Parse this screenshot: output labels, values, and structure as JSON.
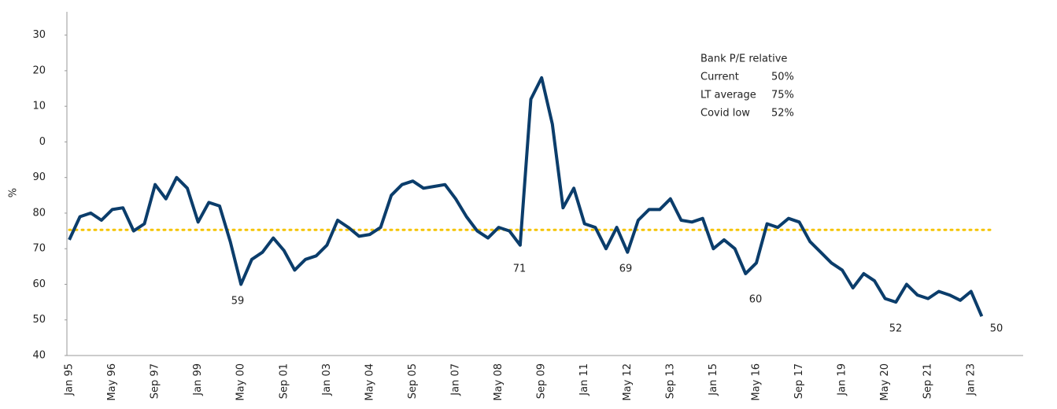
{
  "chart_data": {
    "type": "line",
    "y_label": "%",
    "categories": [
      "Jan 95",
      null,
      null,
      null,
      "May 96",
      null,
      null,
      null,
      "Sep 97",
      null,
      null,
      null,
      "Jan 99",
      null,
      null,
      null,
      "May 00",
      null,
      null,
      null,
      "Sep 01",
      null,
      null,
      null,
      "Jan 03",
      null,
      null,
      null,
      "May 04",
      null,
      null,
      null,
      "Sep 05",
      null,
      null,
      null,
      "Jan 07",
      null,
      null,
      null,
      "May 08",
      null,
      null,
      null,
      "Sep 09",
      null,
      null,
      null,
      "Jan 11",
      null,
      null,
      null,
      "May 12",
      null,
      null,
      null,
      "Sep 13",
      null,
      null,
      null,
      "Jan 15",
      null,
      null,
      null,
      "May 16",
      null,
      null,
      null,
      "Sep 17",
      null,
      null,
      null,
      "Jan 19",
      null,
      null,
      null,
      "May 20",
      null,
      null,
      null,
      "Sep 21",
      null,
      null,
      null,
      "Jan 23",
      null
    ],
    "series": [
      {
        "name": "Bank P/E relative",
        "color": "#0b3d6b",
        "values": [
          72.5,
          79,
          80,
          78,
          81,
          81.5,
          75,
          77,
          88,
          84,
          90,
          87,
          77.5,
          83,
          82,
          72,
          60,
          67,
          69,
          73,
          69.5,
          64,
          67,
          68,
          71,
          78,
          76,
          73.5,
          74,
          76,
          85,
          88,
          89,
          87,
          87.5,
          88,
          84,
          79,
          75,
          73,
          76,
          75,
          71,
          112,
          118,
          105,
          81.5,
          87,
          77,
          76,
          70,
          76,
          69,
          78,
          81,
          81,
          84,
          78,
          77.5,
          78.5,
          70,
          72.5,
          70,
          63,
          66,
          77,
          76,
          78.5,
          77.5,
          72,
          69,
          66,
          64,
          59,
          63,
          61,
          56,
          55,
          60,
          57,
          56,
          58,
          57,
          55.5,
          58,
          51
        ]
      }
    ],
    "ylim": [
      40,
      135
    ],
    "yticks": [
      40,
      50,
      60,
      70,
      80,
      90,
      {
        "value": 100,
        "label": "0"
      },
      {
        "value": 110,
        "label": "10"
      },
      {
        "value": 120,
        "label": "20"
      },
      {
        "value": 130,
        "label": "30"
      }
    ],
    "reference_line": {
      "value": 75.3,
      "color": "#f5c400"
    },
    "annotations": [
      "59",
      "71",
      "69",
      "60",
      "52",
      "50"
    ],
    "legend_box": {
      "title": "Bank P/E relative",
      "rows": [
        [
          "Current",
          "50%"
        ],
        [
          "LT average",
          "75%"
        ],
        [
          "Covid low",
          "52%"
        ]
      ]
    }
  }
}
